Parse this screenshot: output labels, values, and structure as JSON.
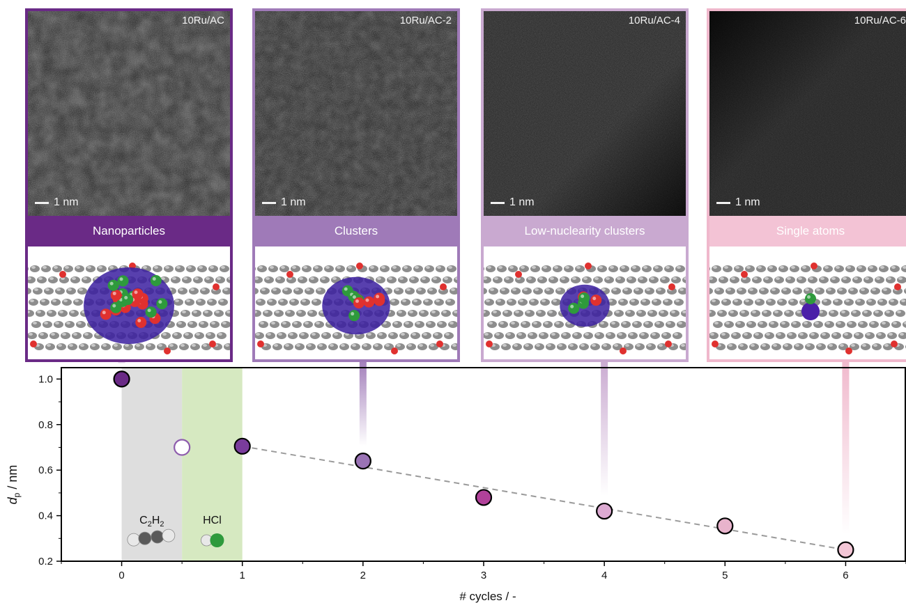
{
  "panels": [
    {
      "sample": "10Ru/AC",
      "scale": "1 nm",
      "label": "Nanoparticles",
      "border_color": "#6a2a86",
      "band_color": "#6a2a86",
      "model": "nanoparticle-model"
    },
    {
      "sample": "10Ru/AC-2",
      "scale": "1 nm",
      "label": "Clusters",
      "border_color": "#9f7ab8",
      "band_color": "#9f7ab8",
      "model": "cluster-model"
    },
    {
      "sample": "10Ru/AC-4",
      "scale": "1 nm",
      "label": "Low-nuclearity clusters",
      "border_color": "#c9a9d0",
      "band_color": "#c9a9d0",
      "model": "low-nuclearity-cluster-model"
    },
    {
      "sample": "10Ru/AC-6",
      "scale": "1 nm",
      "label": "Single atoms",
      "border_color": "#f0b8cc",
      "band_color": "#f3c3d5",
      "model": "single-atom-model"
    }
  ],
  "chart_data": {
    "type": "scatter",
    "xlabel": "# cycles / -",
    "ylabel_main": "d",
    "ylabel_sub": "p",
    "ylabel_unit": " / nm",
    "xlim": [
      -0.5,
      6.5
    ],
    "ylim": [
      0.2,
      1.05
    ],
    "xticks": [
      0,
      1,
      2,
      3,
      4,
      5,
      6
    ],
    "yticks": [
      0.2,
      0.4,
      0.6,
      0.8,
      1.0
    ],
    "ytick_labels": [
      "0.2",
      "0.4",
      "0.6",
      "0.8",
      "1.0"
    ],
    "points": [
      {
        "x": 0,
        "y": 1.0,
        "color": "#6a2a86",
        "filled": true
      },
      {
        "x": 0.5,
        "y": 0.7,
        "color": "#8e5cad",
        "filled": false
      },
      {
        "x": 1,
        "y": 0.705,
        "color": "#7a3c9c",
        "filled": true
      },
      {
        "x": 2,
        "y": 0.64,
        "color": "#9a73b5",
        "filled": true
      },
      {
        "x": 3,
        "y": 0.48,
        "color": "#b1419a",
        "filled": true
      },
      {
        "x": 4,
        "y": 0.42,
        "color": "#dcaad2",
        "filled": true
      },
      {
        "x": 5,
        "y": 0.355,
        "color": "#e8b3cc",
        "filled": true
      },
      {
        "x": 6,
        "y": 0.25,
        "color": "#f3c6d6",
        "filled": true
      }
    ],
    "trend": {
      "x": [
        1,
        6
      ],
      "y": [
        0.705,
        0.25
      ],
      "style": "dashed",
      "color": "#9a9a9a"
    },
    "shaded_regions": [
      {
        "x": [
          0,
          0.5
        ],
        "color": "#dedede",
        "label": "C",
        "sub1": "2",
        "mid": "H",
        "sub2": "2"
      },
      {
        "x": [
          0.5,
          1
        ],
        "color": "#d6e9c1",
        "label": "HCl"
      }
    ],
    "connectors": [
      {
        "x": 0,
        "color": "#7a3c9c"
      },
      {
        "x": 2,
        "color": "#9f7ab8"
      },
      {
        "x": 4,
        "color": "#c9a9d0"
      },
      {
        "x": 6,
        "color": "#f0b8cc"
      }
    ]
  }
}
